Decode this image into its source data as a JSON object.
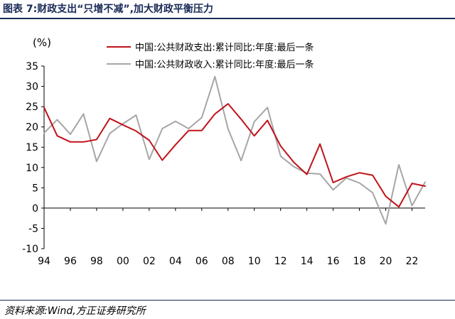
{
  "title": "图表 7:财政支出“只增不减”,加大财政平衡压力",
  "source": "资料来源:Wind,方正证券研究所",
  "chart_data": {
    "type": "line",
    "ylabel": "(%)",
    "ylim": [
      -10,
      35
    ],
    "yticks": [
      35,
      30,
      25,
      20,
      15,
      10,
      5,
      0,
      -5,
      -10
    ],
    "ytick_labels": [
      "35",
      "30",
      "25",
      "20",
      "15",
      "10",
      "5",
      "0",
      "-5",
      "-10"
    ],
    "xlim": [
      1994,
      2023
    ],
    "xticks": [
      1994,
      1996,
      1998,
      2000,
      2002,
      2004,
      2006,
      2008,
      2010,
      2012,
      2014,
      2016,
      2018,
      2020,
      2022
    ],
    "xtick_labels": [
      "94",
      "96",
      "98",
      "00",
      "02",
      "04",
      "06",
      "08",
      "10",
      "12",
      "14",
      "16",
      "18",
      "20",
      "22"
    ],
    "grid": false,
    "legend_position": "top-right",
    "x": [
      1994,
      1995,
      1996,
      1997,
      1998,
      1999,
      2000,
      2001,
      2002,
      2003,
      2004,
      2005,
      2006,
      2007,
      2008,
      2009,
      2010,
      2011,
      2012,
      2013,
      2014,
      2015,
      2016,
      2017,
      2018,
      2019,
      2020,
      2021,
      2022,
      2023
    ],
    "series": [
      {
        "name": "中国:公共财政支出:累计同比:年度:最后一条",
        "color": "#c0131b",
        "values": [
          24.8,
          17.8,
          16.3,
          16.3,
          16.9,
          22.1,
          20.5,
          19.0,
          16.7,
          11.8,
          15.6,
          19.1,
          19.1,
          23.2,
          25.7,
          21.9,
          17.8,
          21.6,
          15.3,
          11.3,
          8.3,
          15.8,
          6.3,
          7.7,
          8.7,
          8.1,
          2.9,
          0.3,
          6.1,
          5.4
        ]
      },
      {
        "name": "中国:公共财政收入:累计同比:年度:最后一条",
        "color": "#a6a6a6",
        "values": [
          18.5,
          21.8,
          18.2,
          23.2,
          11.5,
          18.4,
          20.8,
          22.9,
          12.0,
          19.6,
          21.4,
          19.6,
          22.3,
          32.4,
          19.5,
          11.7,
          21.3,
          24.8,
          12.8,
          10.2,
          8.6,
          8.4,
          4.5,
          7.4,
          6.2,
          3.8,
          -3.9,
          10.7,
          0.6,
          6.4
        ]
      }
    ]
  }
}
